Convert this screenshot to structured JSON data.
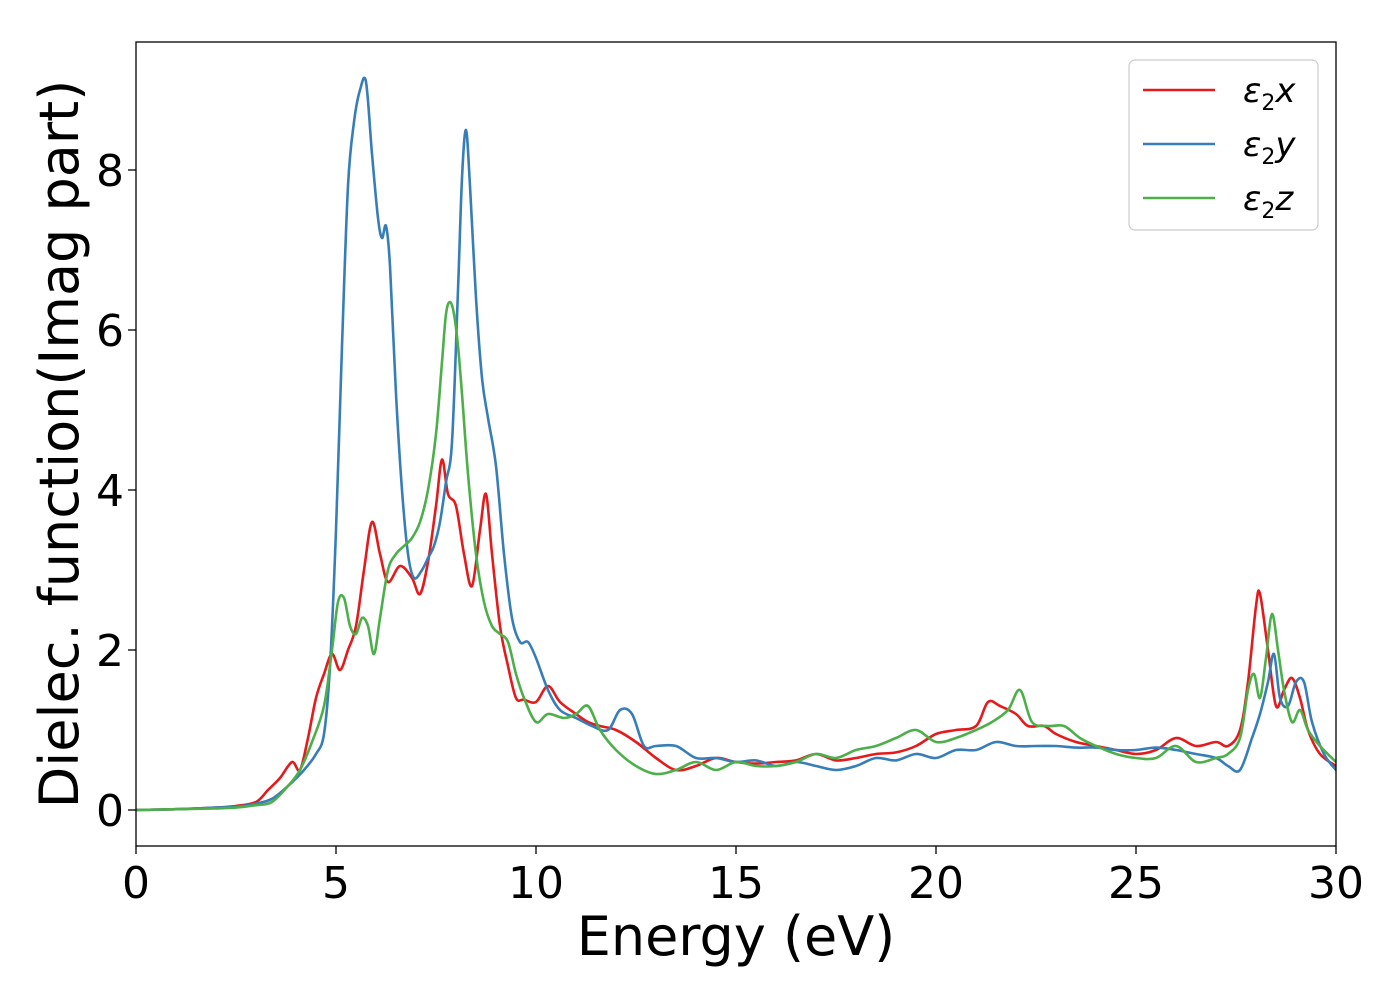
{
  "chart_data": {
    "type": "line",
    "xlabel": "Energy (eV)",
    "ylabel": "Dielec. function(Imag part)",
    "xlim": [
      0,
      30
    ],
    "ylim": [
      -0.45,
      9.6
    ],
    "xticks": [
      0,
      5,
      10,
      15,
      20,
      25,
      30
    ],
    "yticks": [
      0,
      2,
      4,
      6,
      8
    ],
    "grid": false,
    "legend_position": "top-right",
    "series": [
      {
        "name": "ε₂x",
        "legend": {
          "base": "ε",
          "sub": "2",
          "var": "x"
        },
        "color": "#e41a1c",
        "x": [
          0,
          1,
          2,
          2.5,
          3,
          3.3,
          3.6,
          3.9,
          4.1,
          4.3,
          4.5,
          4.7,
          4.9,
          5.1,
          5.3,
          5.5,
          5.7,
          5.9,
          6.1,
          6.3,
          6.6,
          6.9,
          7.1,
          7.3,
          7.5,
          7.65,
          7.8,
          8.0,
          8.2,
          8.4,
          8.6,
          8.75,
          8.9,
          9.1,
          9.3,
          9.5,
          9.7,
          10.0,
          10.3,
          10.6,
          11.0,
          11.3,
          11.6,
          12.0,
          12.5,
          13.0,
          13.5,
          14.0,
          14.5,
          15.0,
          15.5,
          16.0,
          16.5,
          17.0,
          17.5,
          18.0,
          18.5,
          19.0,
          19.5,
          20.0,
          20.5,
          21.0,
          21.3,
          21.6,
          22.0,
          22.3,
          22.7,
          23.0,
          23.5,
          24.0,
          24.5,
          25.0,
          25.5,
          26.0,
          26.5,
          27.0,
          27.3,
          27.6,
          27.8,
          28.0,
          28.1,
          28.3,
          28.5,
          28.7,
          28.9,
          29.1,
          29.3,
          29.6,
          30.0
        ],
        "y": [
          0,
          0.01,
          0.03,
          0.05,
          0.1,
          0.25,
          0.4,
          0.6,
          0.5,
          0.9,
          1.4,
          1.7,
          1.95,
          1.75,
          2.0,
          2.3,
          3.0,
          3.6,
          3.2,
          2.85,
          3.05,
          2.9,
          2.7,
          3.1,
          3.8,
          4.38,
          3.95,
          3.8,
          3.2,
          2.8,
          3.5,
          3.95,
          3.2,
          2.3,
          1.8,
          1.4,
          1.38,
          1.35,
          1.55,
          1.35,
          1.2,
          1.1,
          1.05,
          1.0,
          0.85,
          0.65,
          0.5,
          0.55,
          0.65,
          0.6,
          0.58,
          0.6,
          0.62,
          0.7,
          0.62,
          0.65,
          0.7,
          0.72,
          0.8,
          0.95,
          1.0,
          1.05,
          1.35,
          1.3,
          1.2,
          1.05,
          1.05,
          0.95,
          0.85,
          0.8,
          0.75,
          0.7,
          0.75,
          0.9,
          0.8,
          0.85,
          0.8,
          1.0,
          1.6,
          2.55,
          2.7,
          2.0,
          1.3,
          1.5,
          1.65,
          1.4,
          1.0,
          0.7,
          0.55
        ]
      },
      {
        "name": "ε₂y",
        "legend": {
          "base": "ε",
          "sub": "2",
          "var": "y"
        },
        "color": "#377eb8",
        "x": [
          0,
          1,
          2,
          2.5,
          3,
          3.4,
          3.8,
          4.2,
          4.5,
          4.7,
          4.85,
          5.0,
          5.15,
          5.3,
          5.45,
          5.6,
          5.75,
          5.9,
          6.05,
          6.15,
          6.25,
          6.35,
          6.5,
          6.65,
          6.8,
          6.95,
          7.15,
          7.3,
          7.45,
          7.6,
          7.75,
          7.9,
          8.05,
          8.15,
          8.25,
          8.35,
          8.5,
          8.65,
          8.8,
          9.0,
          9.2,
          9.4,
          9.6,
          9.8,
          10.0,
          10.3,
          10.6,
          11.0,
          11.4,
          11.8,
          12.1,
          12.4,
          12.7,
          13.0,
          13.5,
          14.0,
          14.5,
          15.0,
          15.5,
          16.0,
          16.5,
          17.0,
          17.5,
          18.0,
          18.5,
          19.0,
          19.5,
          20.0,
          20.5,
          21.0,
          21.5,
          22.0,
          22.5,
          23.0,
          23.5,
          24.0,
          24.5,
          25.0,
          25.5,
          26.0,
          26.5,
          27.0,
          27.3,
          27.6,
          27.9,
          28.1,
          28.3,
          28.45,
          28.6,
          28.8,
          29.0,
          29.2,
          29.4,
          29.7,
          30.0
        ],
        "y": [
          0,
          0.01,
          0.03,
          0.04,
          0.08,
          0.14,
          0.3,
          0.5,
          0.7,
          0.95,
          1.8,
          3.5,
          5.8,
          7.8,
          8.6,
          9.0,
          9.1,
          8.2,
          7.4,
          7.15,
          7.3,
          6.8,
          5.2,
          4.0,
          3.2,
          2.9,
          3.0,
          3.15,
          3.3,
          3.6,
          4.1,
          4.6,
          6.5,
          7.9,
          8.5,
          7.8,
          6.4,
          5.4,
          4.9,
          4.3,
          3.2,
          2.4,
          2.1,
          2.1,
          1.9,
          1.5,
          1.25,
          1.15,
          1.05,
          1.0,
          1.25,
          1.2,
          0.8,
          0.8,
          0.8,
          0.65,
          0.65,
          0.6,
          0.62,
          0.55,
          0.6,
          0.55,
          0.5,
          0.55,
          0.65,
          0.62,
          0.7,
          0.65,
          0.75,
          0.75,
          0.85,
          0.8,
          0.8,
          0.8,
          0.78,
          0.78,
          0.75,
          0.75,
          0.78,
          0.75,
          0.7,
          0.65,
          0.55,
          0.5,
          0.9,
          1.2,
          1.6,
          1.95,
          1.4,
          1.3,
          1.6,
          1.6,
          1.1,
          0.7,
          0.5
        ]
      },
      {
        "name": "ε₂z",
        "legend": {
          "base": "ε",
          "sub": "2",
          "var": "z"
        },
        "color": "#4daf4a",
        "x": [
          0,
          1,
          2,
          2.5,
          3,
          3.4,
          3.8,
          4.1,
          4.4,
          4.7,
          4.9,
          5.05,
          5.2,
          5.35,
          5.5,
          5.65,
          5.8,
          5.95,
          6.1,
          6.3,
          6.5,
          6.7,
          6.9,
          7.1,
          7.3,
          7.5,
          7.65,
          7.75,
          7.85,
          7.95,
          8.05,
          8.15,
          8.3,
          8.5,
          8.7,
          8.9,
          9.1,
          9.3,
          9.5,
          9.7,
          10.0,
          10.3,
          10.7,
          11.0,
          11.3,
          11.6,
          12.0,
          12.5,
          13.0,
          13.5,
          14.0,
          14.5,
          15.0,
          15.5,
          16.0,
          16.5,
          17.0,
          17.5,
          18.0,
          18.5,
          19.0,
          19.5,
          20.0,
          20.5,
          21.0,
          21.4,
          21.8,
          22.1,
          22.4,
          22.8,
          23.2,
          23.6,
          24.0,
          24.5,
          25.0,
          25.5,
          26.0,
          26.5,
          27.0,
          27.3,
          27.6,
          27.8,
          27.95,
          28.1,
          28.25,
          28.4,
          28.55,
          28.7,
          28.9,
          29.1,
          29.3,
          29.6,
          30.0
        ],
        "y": [
          0,
          0.01,
          0.02,
          0.03,
          0.06,
          0.1,
          0.3,
          0.5,
          0.85,
          1.3,
          2.0,
          2.6,
          2.65,
          2.3,
          2.2,
          2.4,
          2.3,
          1.95,
          2.4,
          3.0,
          3.2,
          3.3,
          3.4,
          3.6,
          4.0,
          4.7,
          5.6,
          6.2,
          6.35,
          6.2,
          5.8,
          5.2,
          4.2,
          3.2,
          2.6,
          2.3,
          2.2,
          2.1,
          1.7,
          1.4,
          1.1,
          1.2,
          1.15,
          1.2,
          1.3,
          1.0,
          0.75,
          0.55,
          0.45,
          0.5,
          0.6,
          0.5,
          0.6,
          0.55,
          0.55,
          0.6,
          0.7,
          0.65,
          0.75,
          0.8,
          0.9,
          1.0,
          0.85,
          0.9,
          1.0,
          1.1,
          1.25,
          1.5,
          1.1,
          1.05,
          1.05,
          0.9,
          0.8,
          0.7,
          0.65,
          0.65,
          0.8,
          0.6,
          0.65,
          0.7,
          0.9,
          1.5,
          1.7,
          1.4,
          1.9,
          2.45,
          2.0,
          1.5,
          1.1,
          1.25,
          1.0,
          0.8,
          0.6
        ]
      }
    ]
  }
}
